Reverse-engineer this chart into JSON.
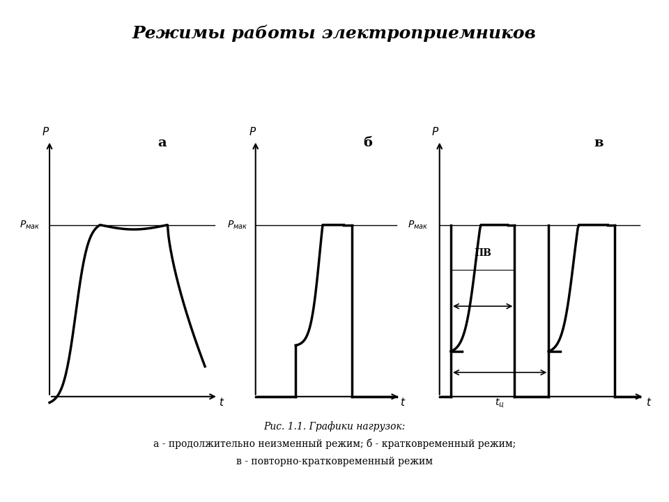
{
  "title": "Режимы работы электроприемников",
  "title_fontsize": 18,
  "caption_italic": "Рис. 1.1. Графики нагрузок:",
  "caption_line2": "а - продолжительно неизменный режим; б - кратковременный режим;",
  "caption_line3": "в - повторно-кратковременный режим",
  "background_color": "#ffffff",
  "label_a": "а",
  "label_b": "б",
  "label_v": "в",
  "line_color": "#000000",
  "thick_lw": 2.5,
  "axis_lw": 1.5,
  "pmax_line_lw": 1.0,
  "arrow_lw": 1.2,
  "caption_fontsize": 10,
  "label_fontsize": 14,
  "axis_label_fontsize": 11,
  "pmax_fontsize": 10
}
